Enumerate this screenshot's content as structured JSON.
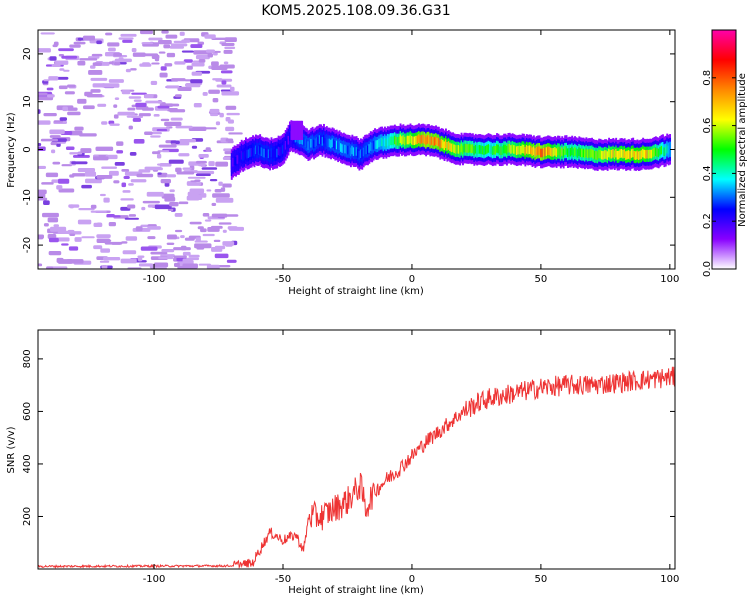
{
  "title": "KOM5.2025.108.09.36.G31",
  "chart_data": [
    {
      "type": "heatmap",
      "name": "spectrogram",
      "xlabel": "Height of straight line (km)",
      "ylabel": "Frequency (Hz)",
      "xlim": [
        -145,
        102
      ],
      "ylim": [
        -25,
        25
      ],
      "xticks": [
        -100,
        -50,
        0,
        50,
        100
      ],
      "yticks": [
        -20,
        -10,
        0,
        10,
        20
      ],
      "xtick_labels": [
        "-100",
        "-50",
        "0",
        "50",
        "100"
      ],
      "ytick_labels": [
        "-20",
        "-10",
        "0",
        "10",
        "20"
      ],
      "noise_region_x": [
        -145,
        -68
      ],
      "noise_amplitude": 0.15,
      "ridge": {
        "x": [
          -70,
          -65,
          -60,
          -55,
          -50,
          -47,
          -45,
          -40,
          -35,
          -30,
          -25,
          -20,
          -15,
          -10,
          -5,
          0,
          5,
          10,
          15,
          20,
          30,
          40,
          50,
          60,
          70,
          80,
          90,
          100
        ],
        "freq": [
          -3,
          -1,
          0,
          -1,
          0,
          3,
          2.5,
          1,
          2,
          1,
          0,
          -1,
          1,
          1.5,
          2,
          2,
          2,
          1.5,
          0.5,
          0,
          0,
          0,
          -0.5,
          -0.5,
          -1,
          -1,
          -1,
          0
        ],
        "amplitude": [
          0.2,
          0.25,
          0.3,
          0.3,
          0.25,
          0.2,
          0.3,
          0.35,
          0.3,
          0.35,
          0.35,
          0.3,
          0.35,
          0.45,
          0.6,
          0.7,
          0.85,
          0.8,
          0.7,
          0.6,
          0.5,
          0.65,
          0.85,
          0.55,
          0.6,
          0.7,
          0.75,
          0.4
        ]
      }
    },
    {
      "type": "colorbar",
      "label": "Normalized spectral amplitude",
      "range": [
        0,
        1
      ],
      "ticks": [
        0.0,
        0.2,
        0.4,
        0.6,
        0.8
      ],
      "tick_labels": [
        "0.0",
        "0.2",
        "0.4",
        "0.6",
        "0.8"
      ],
      "colormap": [
        "#ffffff",
        "#8800ff",
        "#0000ff",
        "#00ffff",
        "#00ff00",
        "#ffff00",
        "#ff8800",
        "#ff0000",
        "#ff00aa"
      ]
    },
    {
      "type": "line",
      "name": "snr",
      "xlabel": "Height of straight line (km)",
      "ylabel": "SNR (v/v)",
      "xlim": [
        -145,
        102
      ],
      "ylim": [
        0,
        910
      ],
      "xticks": [
        -100,
        -50,
        0,
        50,
        100
      ],
      "yticks": [
        200,
        400,
        600,
        800
      ],
      "xtick_labels": [
        "-100",
        "-50",
        "0",
        "50",
        "100"
      ],
      "ytick_labels": [
        "200",
        "400",
        "600",
        "800"
      ],
      "color": "#ee3333",
      "trend": {
        "x": [
          -145,
          -70,
          -62,
          -58,
          -55,
          -50,
          -45,
          -42,
          -40,
          -35,
          -30,
          -25,
          -20,
          -18,
          -15,
          -10,
          -5,
          0,
          5,
          10,
          15,
          20,
          25,
          30,
          40,
          50,
          60,
          70,
          80,
          90,
          100
        ],
        "y": [
          10,
          12,
          20,
          90,
          140,
          110,
          130,
          70,
          200,
          200,
          230,
          260,
          320,
          230,
          290,
          340,
          380,
          430,
          480,
          520,
          560,
          600,
          630,
          650,
          670,
          690,
          700,
          700,
          710,
          720,
          730
        ]
      },
      "noise_amplitude": [
        {
          "x": [
            -145,
            -70
          ],
          "amp": 8
        },
        {
          "x": [
            -70,
            -40
          ],
          "amp": 40
        },
        {
          "x": [
            -40,
            -15
          ],
          "amp": 110
        },
        {
          "x": [
            -15,
            20
          ],
          "amp": 60
        },
        {
          "x": [
            20,
            102
          ],
          "amp": 80
        }
      ]
    }
  ]
}
